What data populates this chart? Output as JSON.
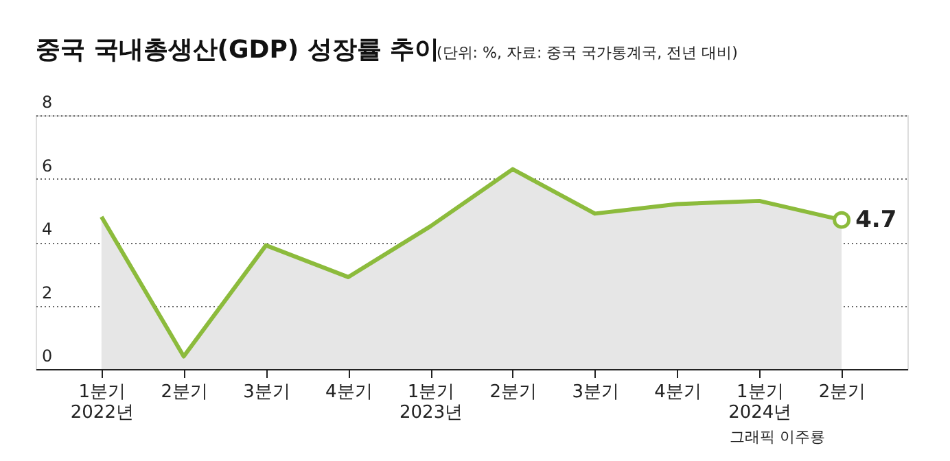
{
  "chart_data": {
    "type": "area",
    "title": "중국 국내총생산(GDP) 성장률 추이",
    "subtitle": "(단위: %, 자료: 중국 국가통계국, 전년 대비)",
    "categories": [
      "1분기\n2022년",
      "2분기",
      "3분기",
      "4분기",
      "1분기\n2023년",
      "2분기",
      "3분기",
      "4분기",
      "1분기\n2024년",
      "2분기"
    ],
    "series": [
      {
        "color": "#8cbb3c",
        "values": [
          4.8,
          0.4,
          3.9,
          2.9,
          4.5,
          6.3,
          4.9,
          5.2,
          5.3,
          4.7
        ],
        "value_labels": [
          null,
          null,
          null,
          null,
          null,
          null,
          null,
          null,
          null,
          "4.7"
        ]
      }
    ],
    "ylim": [
      0,
      8
    ],
    "yticks": [
      0,
      2,
      4,
      6,
      8
    ],
    "grid": "y",
    "annotations": [
      "그래픽 이주룡"
    ]
  }
}
